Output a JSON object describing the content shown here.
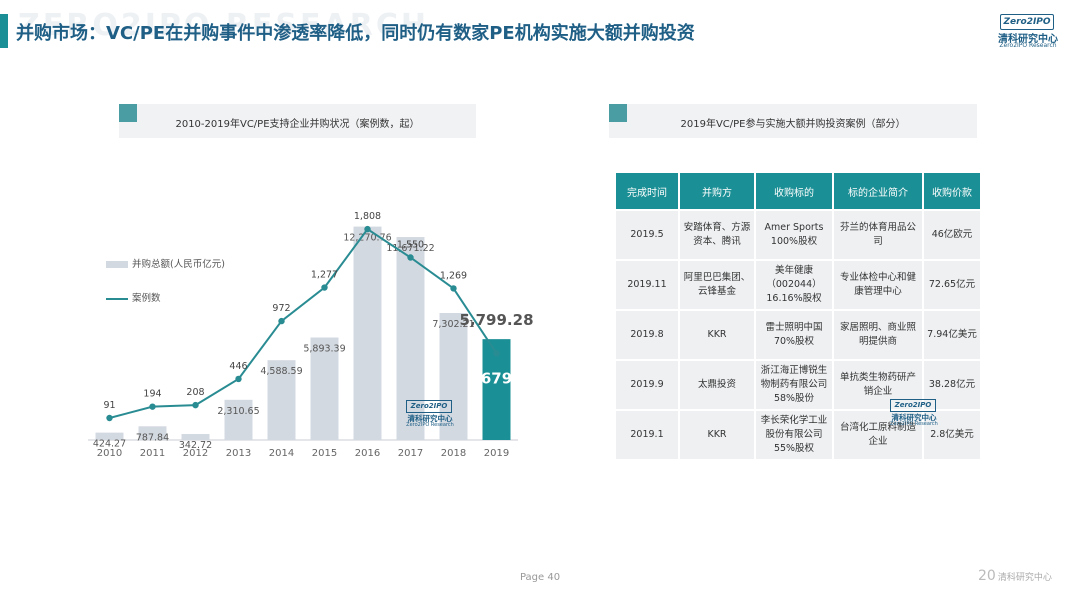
{
  "header": {
    "title": "并购市场：VC/PE在并购事件中渗透率降低，同时仍有数家PE机构实施大额并购投资",
    "watermark": "ZERO2IPO RESEARCH"
  },
  "logo": {
    "badge": "Zero2IPO",
    "cn": "清科研究中心",
    "en": "Zero2IPO Research"
  },
  "left_panel": {
    "title": "2010-2019年VC/PE支持企业并购状况（案例数，起）"
  },
  "right_panel": {
    "title": "2019年VC/PE参与实施大额并购投资案例（部分）"
  },
  "chart_data": {
    "type": "bar+line",
    "categories": [
      "2010",
      "2011",
      "2012",
      "2013",
      "2014",
      "2015",
      "2016",
      "2017",
      "2018",
      "2019"
    ],
    "series": [
      {
        "name": "并购总额(人民币亿元)",
        "type": "bar",
        "values": [
          424.27,
          787.84,
          342.72,
          2310.65,
          4588.59,
          5893.39,
          12270.76,
          11671.22,
          7302.21,
          5799.28
        ],
        "labels": [
          "424.27",
          "787.84",
          "342.72",
          "2,310.65",
          "4,588.59",
          "5,893.39",
          "12,270.76",
          "11,671.22",
          "7,302.21",
          "5,799.28"
        ]
      },
      {
        "name": "案例数",
        "type": "line",
        "values": [
          91,
          194,
          208,
          446,
          972,
          1277,
          1808,
          1550,
          1269,
          679
        ],
        "labels": [
          "91",
          "194",
          "208",
          "446",
          "972",
          "1,277",
          "1,808",
          "1,550",
          "1,269",
          "679"
        ]
      }
    ],
    "colors": {
      "bar": "#d3d9e0",
      "bar_highlight": "#1a8f95",
      "line": "#2a8c93"
    }
  },
  "table": {
    "headers": [
      "完成时间",
      "并购方",
      "收购标的",
      "标的企业简介",
      "收购价款"
    ],
    "rows": [
      [
        "2019.5",
        "安踏体育、方源资本、腾讯",
        "Amer Sports 100%股权",
        "芬兰的体育用品公司",
        "46亿欧元"
      ],
      [
        "2019.11",
        "阿里巴巴集团、云锋基金",
        "美年健康（002044）16.16%股权",
        "专业体检中心和健康管理中心",
        "72.65亿元"
      ],
      [
        "2019.8",
        "KKR",
        "雷士照明中国70%股权",
        "家居照明、商业照明提供商",
        "7.94亿美元"
      ],
      [
        "2019.9",
        "太鼎投资",
        "浙江海正博锐生物制药有限公司58%股份",
        "单抗类生物药研产销企业",
        "38.28亿元"
      ],
      [
        "2019.1",
        "KKR",
        "李长荣化学工业股份有限公司55%股权",
        "台湾化工原料制造企业",
        "2.8亿美元"
      ]
    ]
  },
  "footer": {
    "page": "Page 40",
    "logo_mark": "20",
    "logo_text": "清科研究中心"
  }
}
